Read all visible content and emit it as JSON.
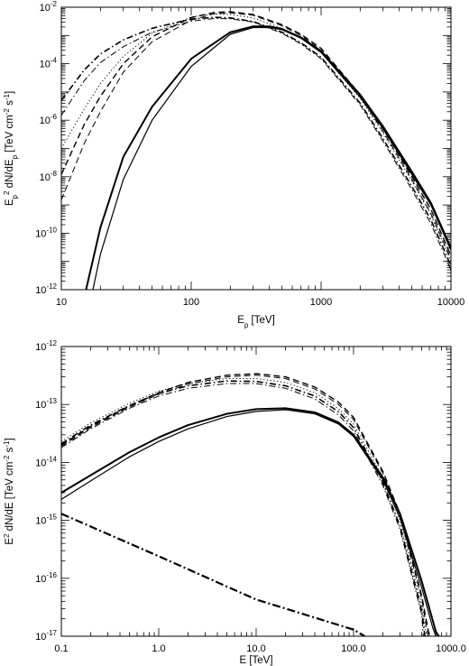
{
  "chart_data": [
    {
      "type": "line",
      "title": "",
      "xlabel": "E_p [TeV]",
      "ylabel": "E_p^2 dN/dE_p [TeV cm^-2 s^-1]",
      "xscale": "log",
      "yscale": "log",
      "xlim": [
        10,
        10000
      ],
      "ylim": [
        1e-12,
        0.01
      ],
      "x_ticks": [
        10,
        100,
        1000,
        10000
      ],
      "x_tick_labels": [
        "10",
        "100",
        "1000",
        "10000"
      ],
      "y_ticks": [
        1e-12,
        1e-10,
        1e-08,
        1e-06,
        0.0001,
        0.01
      ],
      "y_tick_labels": [
        {
          "base": "10",
          "exp": "-12"
        },
        {
          "base": "10",
          "exp": "-10"
        },
        {
          "base": "10",
          "exp": "-8"
        },
        {
          "base": "10",
          "exp": "-6"
        },
        {
          "base": "10",
          "exp": "-4"
        },
        {
          "base": "10",
          "exp": "-2"
        }
      ],
      "grid": false,
      "series": [
        {
          "style": "solid",
          "width": 2.0,
          "x": [
            15.5,
            20,
            30,
            50,
            100,
            200,
            300,
            400,
            500,
            700,
            1000,
            2000,
            3000,
            5000,
            7000,
            10000
          ],
          "y": [
            1e-12,
            1.6e-10,
            5e-08,
            3e-06,
            0.00015,
            0.0013,
            0.0021,
            0.0021,
            0.0017,
            0.00085,
            0.00028,
            8e-06,
            6e-07,
            1.5e-08,
            1.2e-09,
            3e-11
          ]
        },
        {
          "style": "solid",
          "width": 1.2,
          "x": [
            17.5,
            20,
            30,
            50,
            100,
            200,
            300,
            400,
            500,
            700,
            1000,
            2000,
            3000,
            5000,
            7000,
            10000
          ],
          "y": [
            1e-12,
            1.8e-11,
            8e-09,
            1e-06,
            8e-05,
            0.0011,
            0.0019,
            0.0019,
            0.0016,
            0.0008,
            0.00025,
            6.5e-06,
            5e-07,
            1.2e-08,
            1e-09,
            2.5e-11
          ]
        },
        {
          "style": "dash",
          "width": 1.4,
          "x": [
            10,
            15,
            20,
            30,
            50,
            100,
            150,
            200,
            300,
            500,
            700,
            1000,
            2000,
            3000,
            5000,
            7000,
            10000
          ],
          "y": [
            1.2e-08,
            7e-07,
            7e-06,
            0.0001,
            0.0009,
            0.0043,
            0.0065,
            0.0069,
            0.0055,
            0.0024,
            0.0011,
            0.00035,
            8e-06,
            5e-07,
            1e-08,
            7e-10,
            1.6e-11
          ]
        },
        {
          "style": "dash",
          "width": 1.0,
          "x": [
            10,
            15,
            20,
            30,
            50,
            100,
            150,
            200,
            300,
            500,
            700,
            1000,
            2000,
            3000,
            5000,
            7000,
            10000
          ],
          "y": [
            1.5e-09,
            1.5e-07,
            2e-06,
            5e-05,
            0.0006,
            0.0035,
            0.0058,
            0.0063,
            0.0052,
            0.0022,
            0.001,
            0.0003,
            7e-06,
            4e-07,
            8e-09,
            5e-10,
            1.2e-11
          ]
        },
        {
          "style": "dot",
          "width": 1.0,
          "x": [
            10,
            15,
            20,
            30,
            50,
            100,
            150,
            200,
            300,
            500,
            700,
            1000,
            2000,
            3000,
            5000,
            7000,
            10000
          ],
          "y": [
            1e-07,
            2.5e-06,
            2e-05,
            0.00018,
            0.0012,
            0.0045,
            0.0058,
            0.0055,
            0.0042,
            0.0018,
            0.0008,
            0.00025,
            6e-06,
            3.5e-07,
            7e-09,
            4.5e-10,
            1e-11
          ]
        },
        {
          "style": "dashdot",
          "width": 1.6,
          "x": [
            10,
            15,
            20,
            30,
            50,
            100,
            150,
            200,
            300,
            500,
            700,
            1000,
            2000,
            3000,
            5000,
            7000,
            10000
          ],
          "y": [
            5e-06,
            6e-05,
            0.00022,
            0.0007,
            0.0018,
            0.0038,
            0.0044,
            0.0042,
            0.0031,
            0.0013,
            0.00055,
            0.00017,
            4e-06,
            2.2e-07,
            4.5e-09,
            3e-10,
            7e-12
          ]
        },
        {
          "style": "dashdot",
          "width": 1.0,
          "x": [
            10,
            15,
            20,
            30,
            50,
            100,
            150,
            200,
            300,
            500,
            700,
            1000,
            2000,
            3000,
            5000,
            7000,
            10000
          ],
          "y": [
            1.5e-06,
            2.5e-05,
            0.00011,
            0.0004,
            0.0013,
            0.0032,
            0.004,
            0.0039,
            0.003,
            0.0012,
            0.0005,
            0.00015,
            3.5e-06,
            1.8e-07,
            3.5e-09,
            2.2e-10,
            5e-12
          ]
        }
      ]
    },
    {
      "type": "line",
      "title": "",
      "xlabel": "E [TeV]",
      "ylabel": "E^2 dN/dE [TeV cm^-2 s^-1]",
      "xscale": "log",
      "yscale": "log",
      "xlim": [
        0.1,
        1000
      ],
      "ylim": [
        1e-17,
        1e-12
      ],
      "x_ticks": [
        0.1,
        1,
        10,
        100,
        1000
      ],
      "x_tick_labels": [
        "0.1",
        "1.0",
        "10.0",
        "100.0",
        "1000.0"
      ],
      "y_ticks": [
        1e-17,
        1e-16,
        1e-15,
        1e-14,
        1e-13,
        1e-12
      ],
      "y_tick_labels": [
        {
          "base": "10",
          "exp": "-17"
        },
        {
          "base": "10",
          "exp": "-16"
        },
        {
          "base": "10",
          "exp": "-15"
        },
        {
          "base": "10",
          "exp": "-14"
        },
        {
          "base": "10",
          "exp": "-13"
        },
        {
          "base": "10",
          "exp": "-12"
        }
      ],
      "grid": false,
      "series": [
        {
          "style": "solid",
          "width": 2.0,
          "x": [
            0.1,
            0.2,
            0.5,
            1,
            2,
            5,
            10,
            20,
            40,
            70,
            100,
            200,
            300,
            500,
            700,
            750
          ],
          "y": [
            3e-15,
            6e-15,
            1.5e-14,
            2.7e-14,
            4.4e-14,
            6.9e-14,
            8.3e-14,
            8.6e-14,
            7.3e-14,
            4.9e-14,
            3e-14,
            5.5e-15,
            1.3e-15,
            9e-17,
            1.2e-17,
            1e-17
          ]
        },
        {
          "style": "solid",
          "width": 1.2,
          "x": [
            0.1,
            0.2,
            0.5,
            1,
            2,
            5,
            10,
            20,
            40,
            70,
            100,
            200,
            300,
            500,
            650,
            700
          ],
          "y": [
            2.3e-15,
            4.8e-15,
            1.25e-14,
            2.3e-14,
            3.8e-14,
            6.2e-14,
            7.6e-14,
            8.1e-14,
            6.9e-14,
            4.6e-14,
            2.8e-14,
            5e-15,
            1.1e-15,
            7e-17,
            1.4e-17,
            1e-17
          ]
        },
        {
          "style": "dash",
          "width": 1.4,
          "x": [
            0.1,
            0.2,
            0.5,
            1,
            2,
            5,
            10,
            20,
            40,
            70,
            100,
            200,
            300,
            500,
            600
          ],
          "y": [
            2e-14,
            4.2e-14,
            9.5e-14,
            1.6e-13,
            2.4e-13,
            3.2e-13,
            3.4e-13,
            3e-13,
            2e-13,
            1.1e-13,
            6e-14,
            7e-15,
            1.3e-15,
            5e-17,
            1e-17
          ]
        },
        {
          "style": "dash",
          "width": 1.0,
          "x": [
            0.1,
            0.2,
            0.5,
            1,
            2,
            5,
            10,
            20,
            40,
            70,
            100,
            200,
            300,
            500,
            580
          ],
          "y": [
            1.9e-14,
            4e-14,
            9e-14,
            1.5e-13,
            2.25e-13,
            3e-13,
            3.2e-13,
            2.8e-13,
            1.85e-13,
            1e-13,
            5.5e-14,
            6.5e-15,
            1.2e-15,
            4.5e-17,
            1e-17
          ]
        },
        {
          "style": "dot",
          "width": 1.0,
          "x": [
            0.1,
            0.2,
            0.5,
            1,
            2,
            5,
            10,
            20,
            40,
            70,
            100,
            200,
            300,
            500,
            560
          ],
          "y": [
            2.3e-14,
            4.8e-14,
            1.05e-13,
            1.7e-13,
            2.3e-13,
            2.8e-13,
            2.8e-13,
            2.4e-13,
            1.6e-13,
            8.5e-14,
            4.6e-14,
            5.5e-15,
            1e-15,
            3.5e-17,
            1e-17
          ]
        },
        {
          "style": "dashdot",
          "width": 1.6,
          "x": [
            0.1,
            0.2,
            0.5,
            1,
            2,
            5,
            10,
            20,
            40,
            70,
            100,
            200,
            300,
            500,
            540
          ],
          "y": [
            2.1e-14,
            4.4e-14,
            9.6e-14,
            1.55e-13,
            2.1e-13,
            2.55e-13,
            2.5e-13,
            2.1e-13,
            1.4e-13,
            7.5e-14,
            4e-14,
            4.5e-15,
            8e-16,
            2.8e-17,
            1e-17
          ]
        },
        {
          "style": "dashdot",
          "width": 1.0,
          "x": [
            0.1,
            0.2,
            0.5,
            1,
            2,
            5,
            10,
            20,
            40,
            70,
            100,
            200,
            300,
            500,
            520
          ],
          "y": [
            1.8e-14,
            3.8e-14,
            8.6e-14,
            1.4e-13,
            1.9e-13,
            2.3e-13,
            2.3e-13,
            1.9e-13,
            1.25e-13,
            6.6e-14,
            3.5e-14,
            4e-15,
            7e-16,
            2.4e-17,
            1e-17
          ]
        },
        {
          "style": "dashdot-heavy",
          "width": 2.2,
          "x": [
            0.1,
            1,
            10,
            100,
            130
          ],
          "y": [
            1.3e-15,
            2.4e-16,
            4.3e-17,
            1.3e-17,
            1e-17
          ]
        }
      ]
    }
  ]
}
